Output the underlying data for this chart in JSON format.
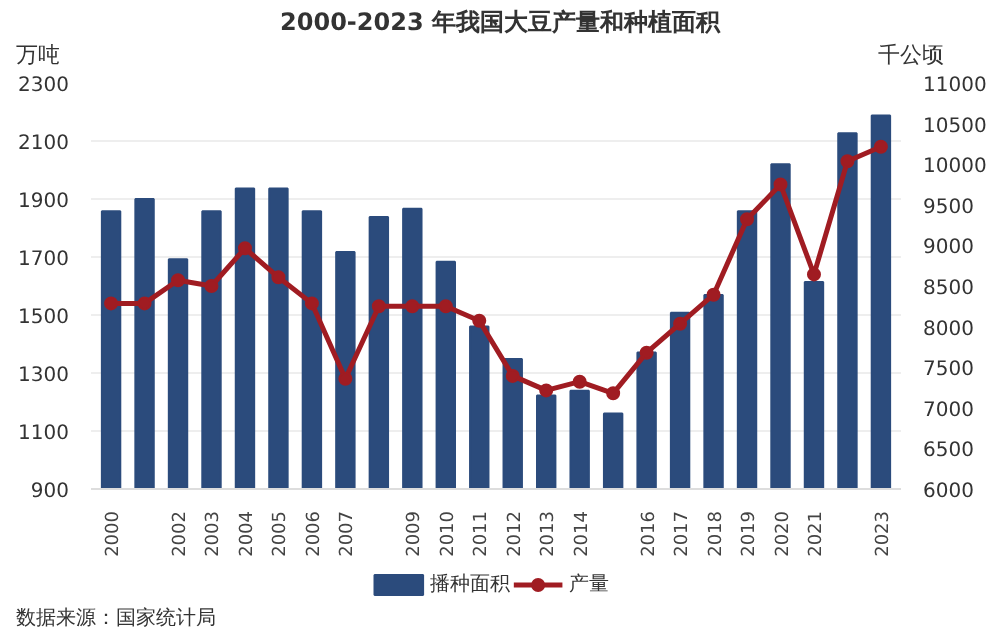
{
  "chart_data": {
    "type": "bar",
    "title": "2000-2023 年我国大豆产量和种植面积",
    "ylabel": "万吨",
    "y2label": "千公顷",
    "categories": [
      "2000",
      null,
      "2002",
      "2003",
      "2004",
      "2005",
      "2006",
      "2007",
      null,
      "2009",
      "2010",
      "2011",
      "2012",
      "2013",
      "2014",
      null,
      "2016",
      "2017",
      "2018",
      "2019",
      "2020",
      "2021",
      null,
      "2023"
    ],
    "series": [
      {
        "name": "播种面积",
        "axis": "y2",
        "color": "#2b4b7c",
        "values": [
          9420,
          9570,
          8830,
          9420,
          9700,
          9700,
          9420,
          8920,
          9350,
          9450,
          8800,
          8000,
          7600,
          7150,
          7210,
          6930,
          7680,
          8170,
          8390,
          9420,
          10000,
          8550,
          10380,
          10600
        ]
      },
      {
        "name": "产量",
        "type": "line",
        "color": "#a01c22",
        "marker": "circle",
        "values": [
          1540,
          1540,
          1620,
          1600,
          1730,
          1630,
          1540,
          1280,
          1530,
          1530,
          1530,
          1480,
          1290,
          1240,
          1270,
          1230,
          1370,
          1470,
          1570,
          1830,
          1950,
          1640,
          2030,
          2080
        ]
      }
    ],
    "ylim": [
      900,
      2300
    ],
    "yticks": [
      900,
      1100,
      1300,
      1500,
      1700,
      1900,
      2100,
      2300
    ],
    "y2lim": [
      6000,
      11000
    ],
    "y2ticks": [
      6000,
      6500,
      7000,
      7500,
      8000,
      8500,
      9000,
      9500,
      10000,
      10500,
      11000
    ],
    "grid": "y",
    "legend": "bottom",
    "annotations": [
      "数据来源：国家统计局"
    ]
  }
}
